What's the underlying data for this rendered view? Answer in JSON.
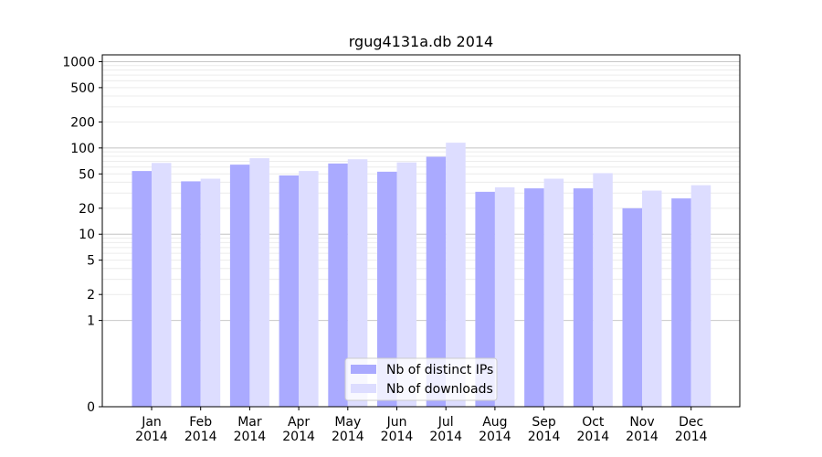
{
  "chart_data": {
    "type": "bar",
    "title": "rgug4131a.db 2014",
    "categories": [
      "Jan\n2014",
      "Feb\n2014",
      "Mar\n2014",
      "Apr\n2014",
      "May\n2014",
      "Jun\n2014",
      "Jul\n2014",
      "Aug\n2014",
      "Sep\n2014",
      "Oct\n2014",
      "Nov\n2014",
      "Dec\n2014"
    ],
    "series": [
      {
        "name": "Nb of distinct IPs",
        "color": "#aaaaff",
        "values": [
          54,
          41,
          64,
          48,
          66,
          53,
          79,
          31,
          34,
          34,
          20,
          26
        ]
      },
      {
        "name": "Nb of downloads",
        "color": "#ddddff",
        "values": [
          67,
          44,
          76,
          54,
          74,
          68,
          115,
          35,
          44,
          51,
          32,
          37
        ]
      }
    ],
    "yscale": "symlog",
    "yticks": [
      0,
      1,
      2,
      5,
      10,
      20,
      50,
      100,
      200,
      500,
      1000
    ],
    "ytick_labels": [
      "0",
      "1",
      "2",
      "5",
      "10",
      "20",
      "50",
      "100",
      "200",
      "500",
      "1000"
    ],
    "ylim": [
      0,
      1200
    ],
    "grid": "y",
    "legend_position": "lower-center",
    "xlabel": "",
    "ylabel": ""
  }
}
